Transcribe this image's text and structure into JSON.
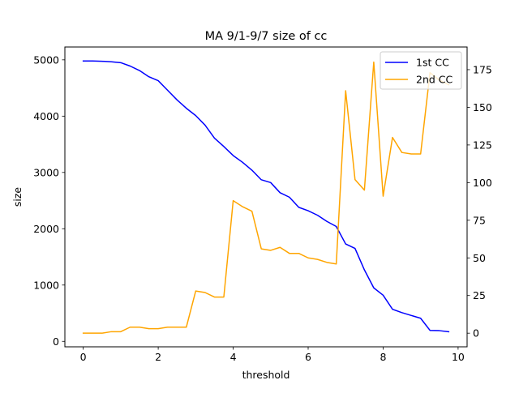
{
  "chart_data": {
    "type": "line",
    "title": "MA 9/1-9/7 size of cc",
    "xlabel": "threshold",
    "ylabel": "size",
    "ylabel_right": "",
    "xlim": [
      -0.49,
      10.24
    ],
    "ylim_left": [
      -97,
      5228
    ],
    "ylim_right": [
      -9.05,
      190.05
    ],
    "xticks": [
      0,
      2,
      4,
      6,
      8,
      10
    ],
    "yticks_left": [
      0,
      1000,
      2000,
      3000,
      4000,
      5000
    ],
    "yticks_right": [
      0,
      25,
      50,
      75,
      100,
      125,
      150,
      175
    ],
    "legend_position": "upper right",
    "grid": false,
    "x": [
      0,
      0.25,
      0.5,
      0.75,
      1.0,
      1.25,
      1.5,
      1.75,
      2.0,
      2.25,
      2.5,
      2.75,
      3.0,
      3.25,
      3.5,
      3.75,
      4.0,
      4.25,
      4.5,
      4.75,
      5.0,
      5.25,
      5.5,
      5.75,
      6.0,
      6.25,
      6.5,
      6.75,
      7.0,
      7.25,
      7.5,
      7.75,
      8.0,
      8.25,
      8.5,
      8.75,
      9.0,
      9.25,
      9.5,
      9.75
    ],
    "series": [
      {
        "name": "1st CC",
        "axis": "left",
        "color": "#0000ff",
        "values": [
          4980,
          4980,
          4975,
          4965,
          4950,
          4890,
          4810,
          4700,
          4630,
          4460,
          4290,
          4140,
          4010,
          3840,
          3610,
          3460,
          3300,
          3180,
          3040,
          2870,
          2820,
          2640,
          2560,
          2380,
          2320,
          2240,
          2130,
          2040,
          1730,
          1650,
          1270,
          950,
          820,
          570,
          510,
          460,
          410,
          195,
          190,
          170
        ]
      },
      {
        "name": "2nd CC",
        "axis": "right",
        "color": "#ffa500",
        "values": [
          0,
          0,
          0,
          1,
          1,
          4,
          4,
          3,
          3,
          4,
          4,
          4,
          28,
          27,
          24,
          24,
          88,
          84,
          81,
          56,
          55,
          57,
          53,
          53,
          50,
          49,
          47,
          46,
          161,
          102,
          95,
          180,
          91,
          130,
          120,
          119,
          119,
          173,
          168,
          165
        ]
      }
    ]
  }
}
